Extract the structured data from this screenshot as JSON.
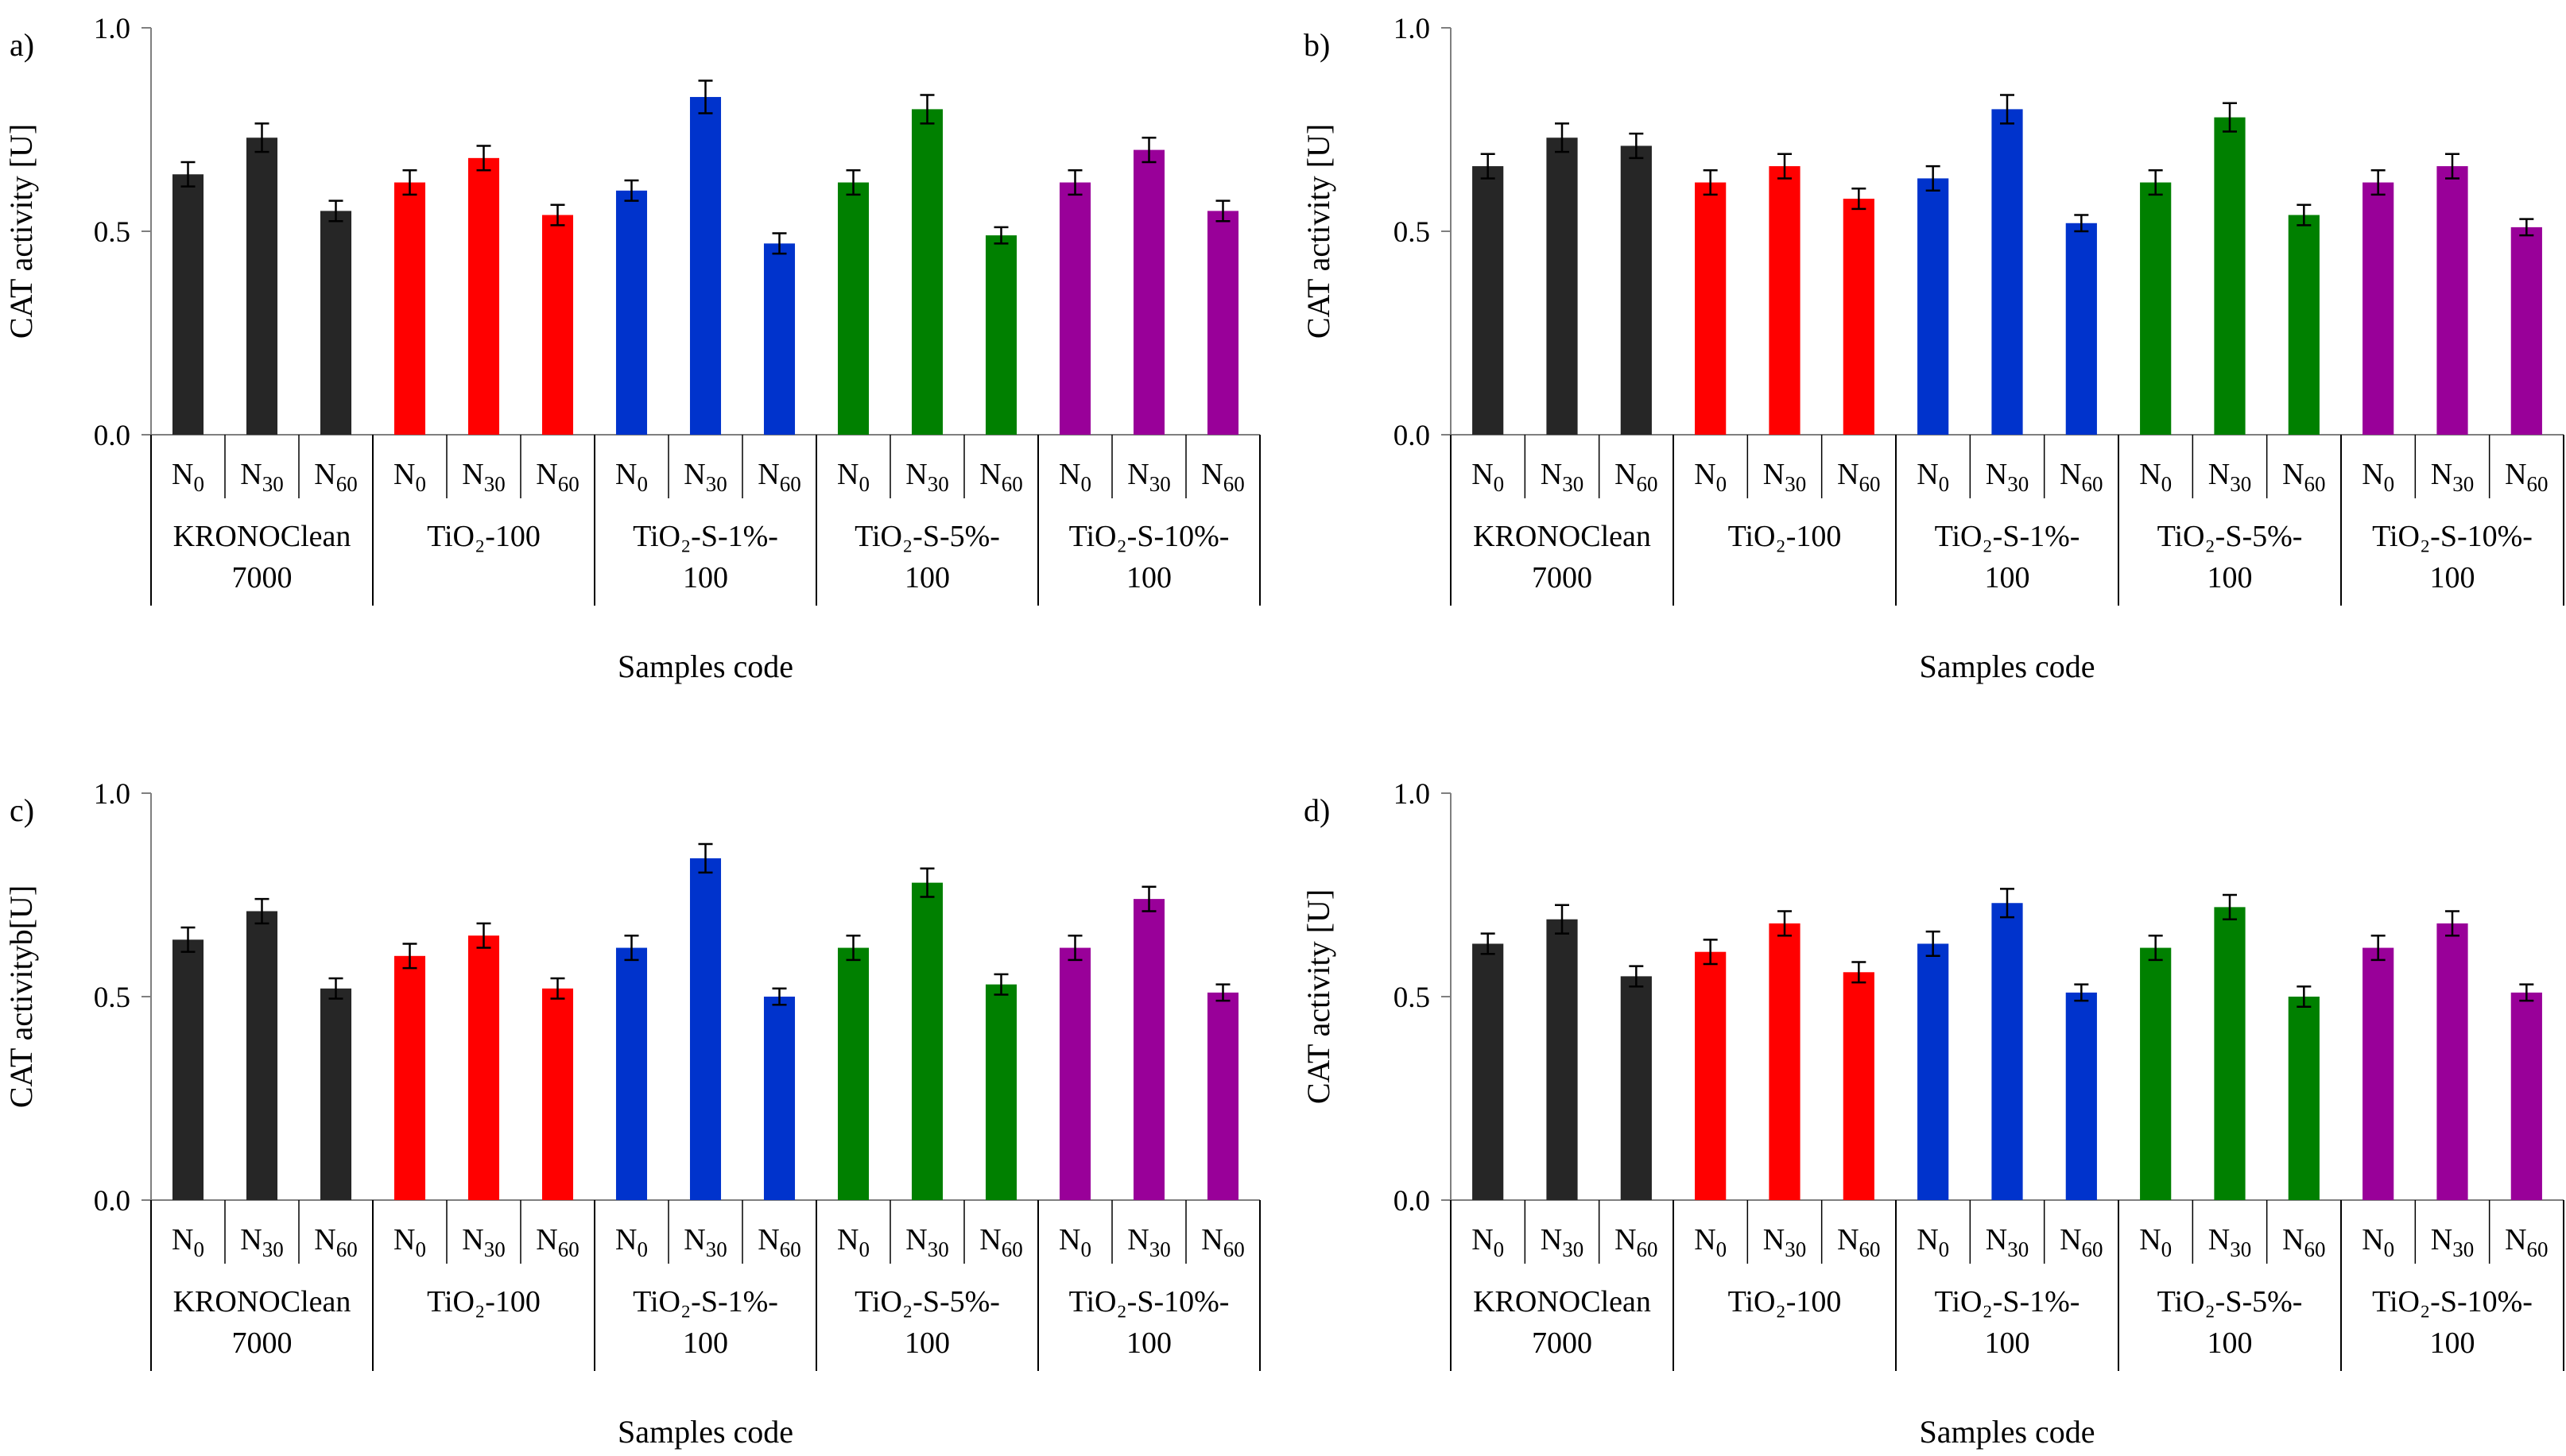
{
  "figure": {
    "x_tick_labels": [
      "N0",
      "N30",
      "N60"
    ],
    "tick_base": "N",
    "tick_subs": [
      "0",
      "30",
      "60"
    ],
    "group_colors": [
      "#262626",
      "#ff0000",
      "#0033cc",
      "#008000",
      "#990099"
    ]
  },
  "chart_data": [
    {
      "type": "bar",
      "panel_label": "a)",
      "ylabel": "CAT activity [U]",
      "xlabel": "Samples code",
      "ylim": [
        0,
        1.0
      ],
      "yticks": [
        "0.0",
        "0.5",
        "1.0"
      ],
      "groups": [
        {
          "label_lines": [
            "KRONOClean",
            "7000"
          ],
          "values": [
            0.64,
            0.73,
            0.55
          ],
          "errors": [
            0.03,
            0.035,
            0.025
          ]
        },
        {
          "label_lines": [
            "TiO₂-100"
          ],
          "values": [
            0.62,
            0.68,
            0.54
          ],
          "errors": [
            0.03,
            0.03,
            0.025
          ]
        },
        {
          "label_lines": [
            "TiO₂-S-1%-",
            "100"
          ],
          "values": [
            0.6,
            0.83,
            0.47
          ],
          "errors": [
            0.025,
            0.04,
            0.025
          ]
        },
        {
          "label_lines": [
            "TiO₂-S-5%-",
            "100"
          ],
          "values": [
            0.62,
            0.8,
            0.49
          ],
          "errors": [
            0.03,
            0.035,
            0.02
          ]
        },
        {
          "label_lines": [
            "TiO₂-S-10%-",
            "100"
          ],
          "values": [
            0.62,
            0.7,
            0.55
          ],
          "errors": [
            0.03,
            0.03,
            0.025
          ]
        }
      ]
    },
    {
      "type": "bar",
      "panel_label": "b)",
      "ylabel": "CAT activity [U]",
      "xlabel": "Samples code",
      "ylim": [
        0,
        1.0
      ],
      "yticks": [
        "0.0",
        "0.5",
        "1.0"
      ],
      "groups": [
        {
          "label_lines": [
            "KRONOClean",
            "7000"
          ],
          "values": [
            0.66,
            0.73,
            0.71
          ],
          "errors": [
            0.03,
            0.035,
            0.03
          ]
        },
        {
          "label_lines": [
            "TiO₂-100"
          ],
          "values": [
            0.62,
            0.66,
            0.58
          ],
          "errors": [
            0.03,
            0.03,
            0.025
          ]
        },
        {
          "label_lines": [
            "TiO₂-S-1%-",
            "100"
          ],
          "values": [
            0.63,
            0.8,
            0.52
          ],
          "errors": [
            0.03,
            0.035,
            0.02
          ]
        },
        {
          "label_lines": [
            "TiO₂-S-5%-",
            "100"
          ],
          "values": [
            0.62,
            0.78,
            0.54
          ],
          "errors": [
            0.03,
            0.035,
            0.025
          ]
        },
        {
          "label_lines": [
            "TiO₂-S-10%-",
            "100"
          ],
          "values": [
            0.62,
            0.66,
            0.51
          ],
          "errors": [
            0.03,
            0.03,
            0.02
          ]
        }
      ]
    },
    {
      "type": "bar",
      "panel_label": "c)",
      "ylabel": "CAT activityb[U]",
      "xlabel": "Samples code",
      "ylim": [
        0,
        1.0
      ],
      "yticks": [
        "0.0",
        "0.5",
        "1.0"
      ],
      "groups": [
        {
          "label_lines": [
            "KRONOClean",
            "7000"
          ],
          "values": [
            0.64,
            0.71,
            0.52
          ],
          "errors": [
            0.03,
            0.03,
            0.025
          ]
        },
        {
          "label_lines": [
            "TiO₂-100"
          ],
          "values": [
            0.6,
            0.65,
            0.52
          ],
          "errors": [
            0.03,
            0.03,
            0.025
          ]
        },
        {
          "label_lines": [
            "TiO₂-S-1%-",
            "100"
          ],
          "values": [
            0.62,
            0.84,
            0.5
          ],
          "errors": [
            0.03,
            0.035,
            0.02
          ]
        },
        {
          "label_lines": [
            "TiO₂-S-5%-",
            "100"
          ],
          "values": [
            0.62,
            0.78,
            0.53
          ],
          "errors": [
            0.03,
            0.035,
            0.025
          ]
        },
        {
          "label_lines": [
            "TiO₂-S-10%-",
            "100"
          ],
          "values": [
            0.62,
            0.74,
            0.51
          ],
          "errors": [
            0.03,
            0.03,
            0.02
          ]
        }
      ]
    },
    {
      "type": "bar",
      "panel_label": "d)",
      "ylabel": "CAT activity [U]",
      "xlabel": "Samples code",
      "ylim": [
        0,
        1.0
      ],
      "yticks": [
        "0.0",
        "0.5",
        "1.0"
      ],
      "groups": [
        {
          "label_lines": [
            "KRONOClean",
            "7000"
          ],
          "values": [
            0.63,
            0.69,
            0.55
          ],
          "errors": [
            0.025,
            0.035,
            0.025
          ]
        },
        {
          "label_lines": [
            "TiO₂-100"
          ],
          "values": [
            0.61,
            0.68,
            0.56
          ],
          "errors": [
            0.03,
            0.03,
            0.025
          ]
        },
        {
          "label_lines": [
            "TiO₂-S-1%-",
            "100"
          ],
          "values": [
            0.63,
            0.73,
            0.51
          ],
          "errors": [
            0.03,
            0.035,
            0.02
          ]
        },
        {
          "label_lines": [
            "TiO₂-S-5%-",
            "100"
          ],
          "values": [
            0.62,
            0.72,
            0.5
          ],
          "errors": [
            0.03,
            0.03,
            0.025
          ]
        },
        {
          "label_lines": [
            "TiO₂-S-10%-",
            "100"
          ],
          "values": [
            0.62,
            0.68,
            0.51
          ],
          "errors": [
            0.03,
            0.03,
            0.02
          ]
        }
      ]
    }
  ]
}
